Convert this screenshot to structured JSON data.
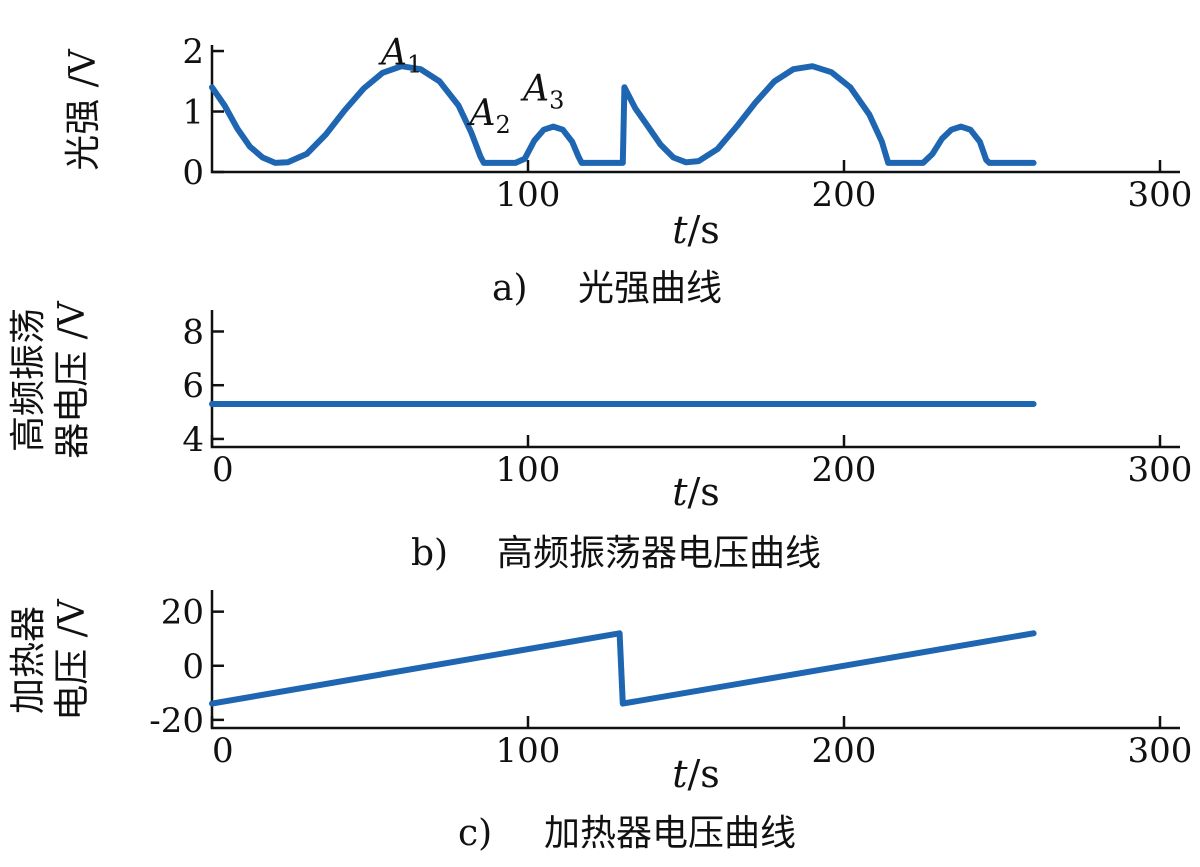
{
  "colors": {
    "series": "#1f66b2",
    "axis": "#111111"
  },
  "chart_data": [
    {
      "type": "line",
      "caption_letter": "a)",
      "caption": "光强曲线",
      "ylabel": "光强 /V",
      "xlabel_var": "t",
      "xlabel_unit": "/s",
      "xlim": [
        0,
        300
      ],
      "ylim": [
        0,
        2.1
      ],
      "xticks": [
        100,
        200,
        300
      ],
      "yticks": [
        0,
        1,
        2
      ],
      "annotations": [
        {
          "main": "A",
          "sub": "1",
          "x": 60,
          "y": 1.78
        },
        {
          "main": "A",
          "sub": "2",
          "x": 88,
          "y": 0.78
        },
        {
          "main": "A",
          "sub": "3",
          "x": 105,
          "y": 1.18
        }
      ],
      "series": [
        {
          "points": [
            [
              0,
              1.4
            ],
            [
              4,
              1.1
            ],
            [
              8,
              0.72
            ],
            [
              12,
              0.42
            ],
            [
              16,
              0.24
            ],
            [
              20,
              0.15
            ],
            [
              24,
              0.16
            ],
            [
              30,
              0.3
            ],
            [
              36,
              0.62
            ],
            [
              42,
              1.02
            ],
            [
              48,
              1.38
            ],
            [
              54,
              1.64
            ],
            [
              60,
              1.75
            ],
            [
              66,
              1.7
            ],
            [
              72,
              1.5
            ],
            [
              78,
              1.1
            ],
            [
              82,
              0.66
            ],
            [
              85,
              0.25
            ],
            [
              86,
              0.15
            ],
            [
              96,
              0.15
            ],
            [
              99,
              0.22
            ],
            [
              102,
              0.52
            ],
            [
              105,
              0.7
            ],
            [
              108,
              0.75
            ],
            [
              111,
              0.7
            ],
            [
              114,
              0.5
            ],
            [
              116,
              0.25
            ],
            [
              117,
              0.15
            ],
            [
              130,
              0.15
            ],
            [
              130.5,
              1.4
            ],
            [
              134,
              1.05
            ],
            [
              138,
              0.75
            ],
            [
              142,
              0.45
            ],
            [
              146,
              0.24
            ],
            [
              150,
              0.16
            ],
            [
              154,
              0.18
            ],
            [
              160,
              0.38
            ],
            [
              166,
              0.75
            ],
            [
              172,
              1.15
            ],
            [
              178,
              1.5
            ],
            [
              184,
              1.7
            ],
            [
              190,
              1.75
            ],
            [
              196,
              1.65
            ],
            [
              202,
              1.4
            ],
            [
              208,
              0.95
            ],
            [
              212,
              0.5
            ],
            [
              214,
              0.15
            ],
            [
              225,
              0.15
            ],
            [
              228,
              0.3
            ],
            [
              231,
              0.55
            ],
            [
              234,
              0.7
            ],
            [
              237,
              0.75
            ],
            [
              240,
              0.7
            ],
            [
              243,
              0.5
            ],
            [
              245,
              0.2
            ],
            [
              246,
              0.15
            ],
            [
              260,
              0.15
            ]
          ]
        }
      ]
    },
    {
      "type": "line",
      "caption_letter": "b)",
      "caption": "高频振荡器电压曲线",
      "ylabel": [
        "高频振荡",
        "器电压 /V"
      ],
      "xlabel_var": "t",
      "xlabel_unit": "/s",
      "xlim": [
        0,
        300
      ],
      "ylim": [
        3.7,
        8.8
      ],
      "xticks": [
        0,
        100,
        200,
        300
      ],
      "yticks": [
        4,
        6,
        8
      ],
      "series": [
        {
          "points": [
            [
              0,
              5.3
            ],
            [
              260,
              5.3
            ]
          ]
        }
      ]
    },
    {
      "type": "line",
      "caption_letter": "c)",
      "caption": "加热器电压曲线",
      "ylabel": [
        "加热器",
        "电压 /V"
      ],
      "xlabel_var": "t",
      "xlabel_unit": "/s",
      "xlim": [
        0,
        300
      ],
      "ylim": [
        -23,
        28
      ],
      "xticks": [
        0,
        100,
        200,
        300
      ],
      "yticks": [
        -20,
        0,
        20
      ],
      "series": [
        {
          "points": [
            [
              0,
              -14
            ],
            [
              129,
              12
            ],
            [
              130,
              -14
            ],
            [
              260,
              12
            ]
          ]
        }
      ]
    }
  ]
}
